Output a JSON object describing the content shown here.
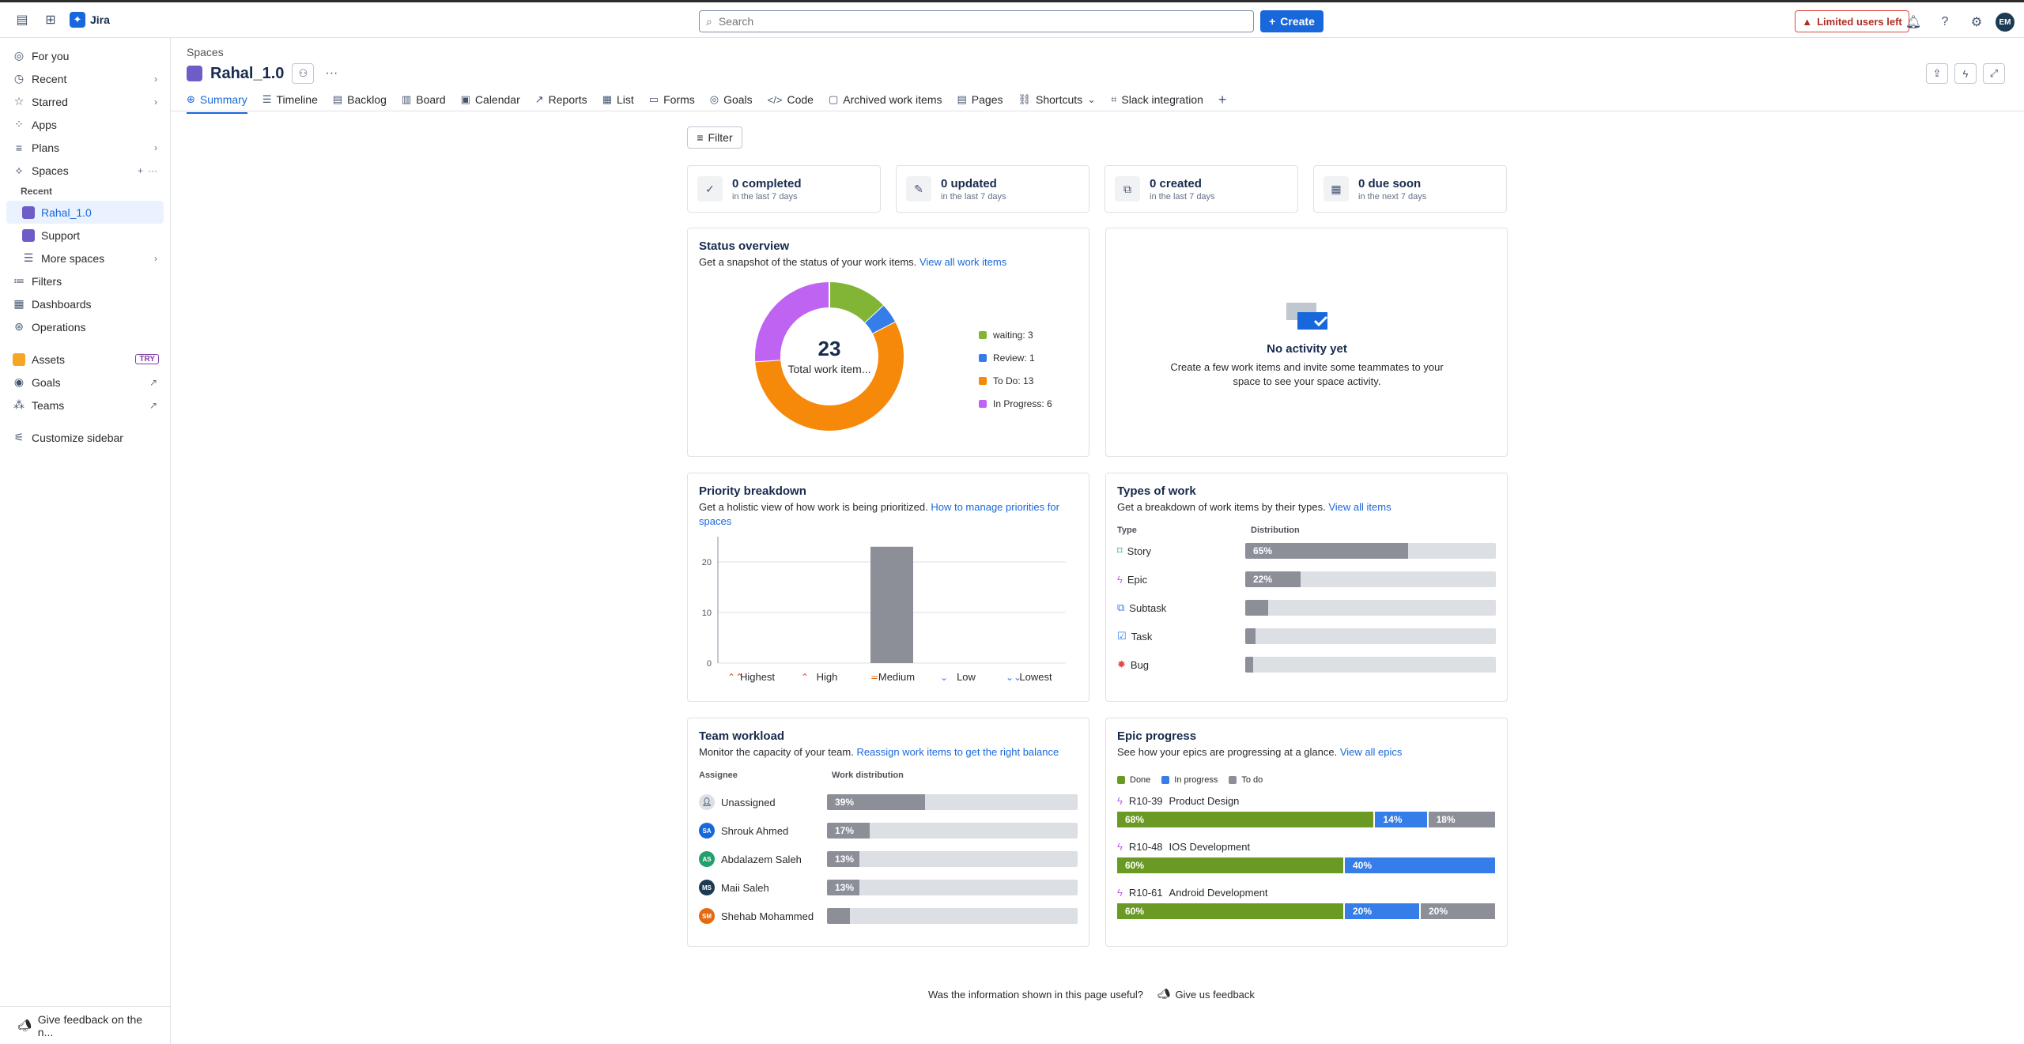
{
  "topbar": {
    "app_name": "Jira",
    "search_placeholder": "Search",
    "create_label": "Create",
    "limited_label": "Limited users left",
    "avatar_initials": "EM"
  },
  "sidebar": {
    "items": [
      {
        "label": "For you",
        "icon": "user-circle-icon"
      },
      {
        "label": "Recent",
        "icon": "clock-icon"
      },
      {
        "label": "Starred",
        "icon": "star-icon"
      },
      {
        "label": "Apps",
        "icon": "apps-icon"
      },
      {
        "label": "Plans",
        "icon": "plans-icon"
      },
      {
        "label": "Spaces",
        "icon": "spaces-icon"
      }
    ],
    "recent_heading": "Recent",
    "spaces": [
      {
        "label": "Rahal_1.0",
        "color": "#6e5dc6"
      },
      {
        "label": "Support",
        "color": "#6e5dc6"
      }
    ],
    "more_spaces": "More spaces",
    "bottom_items": [
      {
        "label": "Filters",
        "icon": "filter-icon"
      },
      {
        "label": "Dashboards",
        "icon": "dashboard-icon"
      },
      {
        "label": "Operations",
        "icon": "operations-icon"
      }
    ],
    "app_items": [
      {
        "label": "Assets",
        "badge": "TRY"
      },
      {
        "label": "Goals"
      },
      {
        "label": "Teams"
      }
    ],
    "customize": "Customize sidebar",
    "feedback": "Give feedback on the n..."
  },
  "header": {
    "breadcrumb": "Spaces",
    "title": "Rahal_1.0"
  },
  "tabs": [
    "Summary",
    "Timeline",
    "Backlog",
    "Board",
    "Calendar",
    "Reports",
    "List",
    "Forms",
    "Goals",
    "Code",
    "Archived work items",
    "Pages",
    "Shortcuts",
    "Slack integration"
  ],
  "filter_label": "Filter",
  "stats": [
    {
      "big": "0 completed",
      "small": "in the last 7 days"
    },
    {
      "big": "0 updated",
      "small": "in the last 7 days"
    },
    {
      "big": "0 created",
      "small": "in the last 7 days"
    },
    {
      "big": "0 due soon",
      "small": "in the next 7 days"
    }
  ],
  "status_overview": {
    "title": "Status overview",
    "desc": "Get a snapshot of the status of your work items.",
    "link": "View all work items",
    "total": "23",
    "total_label": "Total work item...",
    "segments": [
      {
        "label": "waiting: 3",
        "value": 3,
        "color": "#82b536"
      },
      {
        "label": "Review: 1",
        "value": 1,
        "color": "#357de8"
      },
      {
        "label": "To Do: 13",
        "value": 13,
        "color": "#f68909"
      },
      {
        "label": "In Progress: 6",
        "value": 6,
        "color": "#bf63f3"
      }
    ]
  },
  "activity": {
    "title": "No activity yet",
    "desc_line1": "Create a few work items and invite some teammates to your",
    "desc_line2": "space to see your space activity."
  },
  "priority": {
    "title": "Priority breakdown",
    "desc": "Get a holistic view of how work is being prioritized.",
    "link": "How to manage priorities for spaces"
  },
  "chart_data": {
    "type": "bar",
    "categories": [
      "Highest",
      "High",
      "Medium",
      "Low",
      "Lowest"
    ],
    "values": [
      0,
      0,
      23,
      0,
      0
    ],
    "yticks": [
      0,
      10,
      20
    ],
    "ylim": [
      0,
      25
    ],
    "bar_color": "#8c8f97"
  },
  "types": {
    "title": "Types of work",
    "desc": "Get a breakdown of work items by their types.",
    "link": "View all items",
    "col_type": "Type",
    "col_dist": "Distribution",
    "rows": [
      {
        "name": "Story",
        "pct": 65,
        "label": "65%",
        "icon": "story-icon"
      },
      {
        "name": "Epic",
        "pct": 22,
        "label": "22%",
        "icon": "epic-icon"
      },
      {
        "name": "Subtask",
        "pct": 9,
        "label": "",
        "icon": "subtask-icon"
      },
      {
        "name": "Task",
        "pct": 4,
        "label": "",
        "icon": "task-icon"
      },
      {
        "name": "Bug",
        "pct": 0,
        "label": "",
        "icon": "bug-icon"
      }
    ]
  },
  "workload": {
    "title": "Team workload",
    "desc": "Monitor the capacity of your team.",
    "link": "Reassign work items to get the right balance",
    "col_assignee": "Assignee",
    "col_dist": "Work distribution",
    "rows": [
      {
        "name": "Unassigned",
        "pct": 39,
        "label": "39%",
        "initials": "",
        "color": "#dcdfe4"
      },
      {
        "name": "Shrouk Ahmed",
        "pct": 17,
        "label": "17%",
        "initials": "SA",
        "color": "#1868db"
      },
      {
        "name": "Abdalazem Saleh",
        "pct": 13,
        "label": "13%",
        "initials": "AS",
        "color": "#22a06b"
      },
      {
        "name": "Maii Saleh",
        "pct": 13,
        "label": "13%",
        "initials": "MS",
        "color": "#1d3a53"
      },
      {
        "name": "Shehab Mohammed",
        "pct": 9,
        "label": "",
        "initials": "SM",
        "color": "#e56910"
      }
    ]
  },
  "epics": {
    "title": "Epic progress",
    "desc": "See how your epics are progressing at a glance.",
    "link": "View all epics",
    "legend": [
      "Done",
      "In progress",
      "To do"
    ],
    "colors": {
      "done": "#6a9a23",
      "progress": "#357de8",
      "todo": "#8c8f97"
    },
    "rows": [
      {
        "key": "R10-39",
        "name": "Product Design",
        "done": 68,
        "progress": 14,
        "todo": 18,
        "done_l": "68%",
        "progress_l": "14%",
        "todo_l": "18%"
      },
      {
        "key": "R10-48",
        "name": "IOS Development",
        "done": 60,
        "progress": 40,
        "todo": 0,
        "done_l": "60%",
        "progress_l": "40%",
        "todo_l": ""
      },
      {
        "key": "R10-61",
        "name": "Android Development",
        "done": 60,
        "progress": 20,
        "todo": 20,
        "done_l": "60%",
        "progress_l": "20%",
        "todo_l": "20%"
      }
    ]
  },
  "footer": {
    "question": "Was the information shown in this page useful?",
    "feedback": "Give us feedback"
  }
}
